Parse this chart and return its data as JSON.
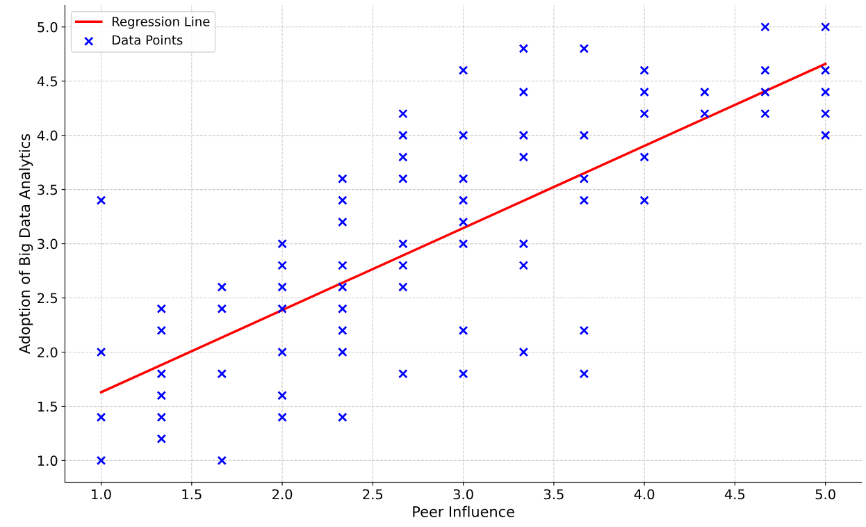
{
  "chart_data": {
    "type": "scatter",
    "xlabel": "Peer Influence",
    "ylabel": "Adoption of Big Data Analytics",
    "xlim": [
      0.8,
      5.2
    ],
    "xticks": [
      {
        "value": 1,
        "label": "1.0"
      },
      {
        "value": 1.5,
        "label": "1.5"
      },
      {
        "value": 2,
        "label": "2.0"
      },
      {
        "value": 2.5,
        "label": "2.5"
      },
      {
        "value": 3,
        "label": "3.0"
      },
      {
        "value": 3.5,
        "label": "3.5"
      },
      {
        "value": 4,
        "label": "4.0"
      },
      {
        "value": 4.5,
        "label": "4.5"
      },
      {
        "value": 5,
        "label": "5.0"
      }
    ],
    "ylim": [
      0.8,
      5.2
    ],
    "yticks": [
      {
        "value": 1,
        "label": "1.0"
      },
      {
        "value": 1.5,
        "label": "1.5"
      },
      {
        "value": 2,
        "label": "2.0"
      },
      {
        "value": 2.5,
        "label": "2.5"
      },
      {
        "value": 3,
        "label": "3.0"
      },
      {
        "value": 3.5,
        "label": "3.5"
      },
      {
        "value": 4,
        "label": "4.0"
      },
      {
        "value": 4.5,
        "label": "4.5"
      },
      {
        "value": 5,
        "label": "5.0"
      }
    ],
    "grid": true,
    "legend": "top left",
    "series": [
      {
        "name": "Regression Line",
        "type": "line",
        "color": "#ff0000",
        "line_style": "solid",
        "marker": "none",
        "x": [
          1,
          5
        ],
        "values": [
          1.63,
          4.66
        ]
      },
      {
        "name": "Data Points",
        "color": "#0000ff",
        "marker": "cross",
        "x": [
          1,
          1,
          1,
          1,
          1.333,
          1.333,
          1.333,
          1.333,
          1.333,
          1.333,
          1.667,
          1.667,
          1.667,
          1.667,
          2,
          2,
          2,
          2,
          2,
          2,
          2,
          2.333,
          2.333,
          2.333,
          2.333,
          2.333,
          2.333,
          2.333,
          2.333,
          2.333,
          2.667,
          2.667,
          2.667,
          2.667,
          2.667,
          2.667,
          2.667,
          2.667,
          3,
          3,
          3,
          3,
          3,
          3,
          3,
          3,
          3.333,
          3.333,
          3.333,
          3.333,
          3.333,
          3.333,
          3.333,
          3.667,
          3.667,
          3.667,
          3.667,
          3.667,
          3.667,
          4,
          4,
          4,
          4,
          4,
          4.333,
          4.333,
          4.667,
          4.667,
          4.667,
          4.667,
          5,
          5,
          5,
          5,
          5
        ],
        "values": [
          3.4,
          2.0,
          1.4,
          1.0,
          2.4,
          2.2,
          1.8,
          1.6,
          1.4,
          1.2,
          2.6,
          2.4,
          1.8,
          1.0,
          3.0,
          2.8,
          2.6,
          2.4,
          2.0,
          1.6,
          1.4,
          3.6,
          3.4,
          3.2,
          2.8,
          2.6,
          2.4,
          2.2,
          2.0,
          1.4,
          4.2,
          4.0,
          3.8,
          3.6,
          3.0,
          2.8,
          2.6,
          1.8,
          4.6,
          4.0,
          3.6,
          3.4,
          3.2,
          3.0,
          2.2,
          1.8,
          4.8,
          4.4,
          4.0,
          3.8,
          3.0,
          2.8,
          2.0,
          4.8,
          4.0,
          3.6,
          3.4,
          2.2,
          1.8,
          4.6,
          4.4,
          4.2,
          3.8,
          3.4,
          4.4,
          4.2,
          5.0,
          4.6,
          4.4,
          4.2,
          5.0,
          4.6,
          4.4,
          4.2,
          4.0
        ]
      }
    ]
  }
}
